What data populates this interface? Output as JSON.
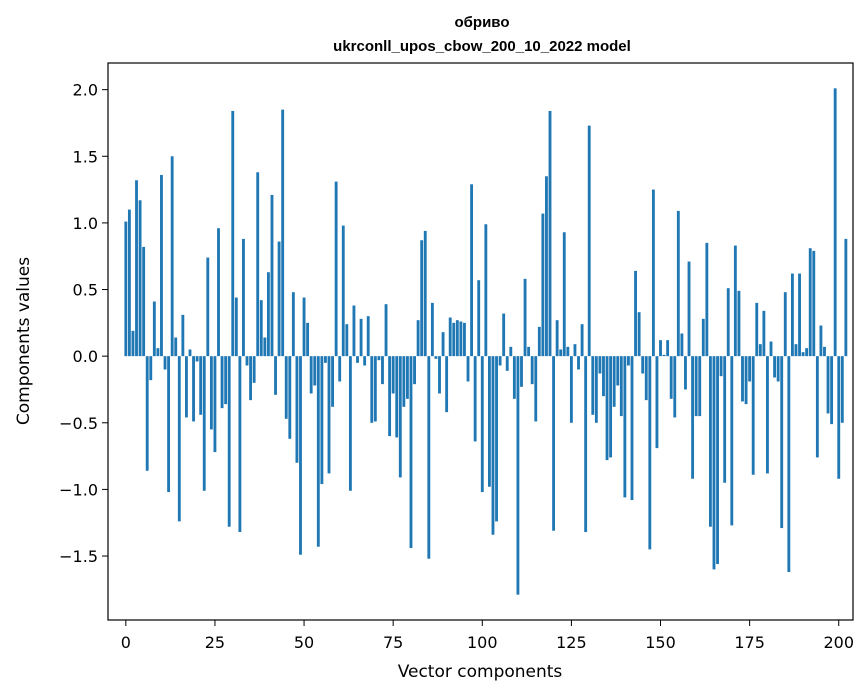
{
  "chart_data": {
    "type": "bar",
    "title": "обриво",
    "subtitle": "ukrconll_upos_cbow_200_10_2022 model",
    "xlabel": "Vector components",
    "ylabel": "Components values",
    "xlim": [
      -5,
      204
    ],
    "ylim": [
      -1.98,
      2.2
    ],
    "xticks": [
      0,
      25,
      50,
      75,
      100,
      125,
      150,
      175,
      200
    ],
    "yticks": [
      2.0,
      1.5,
      1.0,
      0.5,
      0.0,
      -0.5,
      -1.0,
      -1.5
    ],
    "xtick_labels": [
      "0",
      "25",
      "50",
      "75",
      "100",
      "125",
      "150",
      "175",
      "200"
    ],
    "ytick_labels": [
      "2.0",
      "1.5",
      "1.0",
      "0.5",
      "0.0",
      "−0.5",
      "−1.0",
      "−1.5"
    ],
    "bar_color": "#1f77b4",
    "x_start": 0,
    "values": [
      1.01,
      1.1,
      0.19,
      1.32,
      1.17,
      0.82,
      -0.86,
      -0.18,
      0.41,
      0.06,
      1.36,
      -0.1,
      -1.02,
      1.5,
      0.14,
      -1.24,
      0.31,
      -0.46,
      0.05,
      -0.49,
      -0.04,
      -0.44,
      -1.01,
      0.74,
      -0.55,
      -0.72,
      0.96,
      -0.39,
      -0.36,
      -1.28,
      1.84,
      0.44,
      -1.32,
      0.88,
      -0.07,
      -0.33,
      -0.2,
      1.38,
      0.42,
      0.14,
      0.63,
      1.21,
      -0.29,
      0.86,
      1.85,
      -0.47,
      -0.62,
      0.48,
      -0.8,
      -1.49,
      0.44,
      0.25,
      -0.28,
      -0.22,
      -1.43,
      -0.96,
      -0.05,
      -0.88,
      -0.38,
      1.31,
      -0.19,
      0.98,
      0.24,
      -1.01,
      0.38,
      -0.05,
      0.28,
      -0.07,
      0.3,
      -0.5,
      -0.49,
      -0.03,
      -0.21,
      0.39,
      -0.6,
      -0.28,
      -0.61,
      -0.91,
      -0.38,
      -0.32,
      -1.44,
      -0.21,
      0.27,
      0.87,
      0.94,
      -1.52,
      0.4,
      -0.02,
      -0.28,
      0.18,
      -0.42,
      0.29,
      0.25,
      0.27,
      0.26,
      0.25,
      -0.19,
      1.29,
      -0.64,
      0.57,
      -1.02,
      0.99,
      -0.98,
      -1.34,
      -1.24,
      -0.07,
      0.32,
      -0.11,
      0.07,
      -0.32,
      -1.79,
      -0.23,
      0.58,
      0.07,
      -0.21,
      -0.49,
      0.22,
      1.07,
      1.35,
      1.84,
      -1.31,
      0.27,
      0.05,
      0.93,
      0.07,
      -0.5,
      0.09,
      -0.1,
      0.24,
      -1.32,
      1.73,
      -0.44,
      -0.5,
      -0.13,
      -0.3,
      -0.78,
      -0.76,
      -0.38,
      -0.22,
      -0.45,
      -1.06,
      -0.07,
      -1.08,
      0.64,
      0.33,
      -0.13,
      -0.33,
      -1.45,
      1.25,
      -0.69,
      0.12,
      0.01,
      0.12,
      -0.32,
      -0.46,
      1.09,
      0.17,
      -0.25,
      0.71,
      -0.92,
      -0.45,
      -0.45,
      0.28,
      0.85,
      -1.28,
      -1.6,
      -1.56,
      -0.15,
      -0.95,
      0.51,
      -1.27,
      0.83,
      0.49,
      -0.34,
      -0.36,
      -0.19,
      -0.89,
      0.4,
      0.09,
      0.34,
      -0.88,
      0.11,
      -0.16,
      -0.19,
      -1.29,
      0.48,
      -1.62,
      0.62,
      0.09,
      0.62,
      0.03,
      0.06,
      0.81,
      0.79,
      -0.76,
      0.23,
      0.07,
      -0.43,
      -0.51,
      2.01,
      -0.92,
      -0.5,
      0.88
    ]
  }
}
